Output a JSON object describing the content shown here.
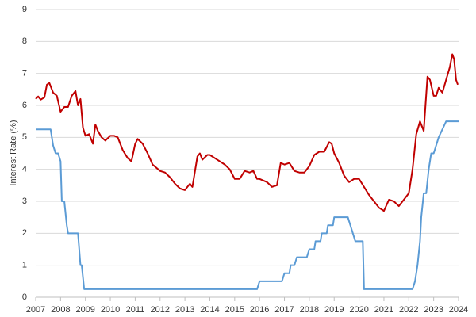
{
  "chart_data": {
    "type": "line",
    "y_label": "Interest Rate (%)",
    "xlim": [
      2007,
      2024
    ],
    "xticks": [
      2007,
      2008,
      2009,
      2010,
      2011,
      2012,
      2013,
      2014,
      2015,
      2016,
      2017,
      2018,
      2019,
      2020,
      2021,
      2022,
      2023,
      2024
    ],
    "ylim": [
      0,
      9
    ],
    "yticks": [
      0,
      1,
      2,
      3,
      4,
      5,
      6,
      7,
      8,
      9
    ],
    "grid": true,
    "series": [
      {
        "color": "#c00000",
        "x": [
          2007.0,
          2007.1,
          2007.2,
          2007.35,
          2007.45,
          2007.55,
          2007.7,
          2007.85,
          2008.0,
          2008.15,
          2008.3,
          2008.45,
          2008.6,
          2008.7,
          2008.8,
          2008.9,
          2009.0,
          2009.15,
          2009.3,
          2009.4,
          2009.5,
          2009.65,
          2009.8,
          2010.0,
          2010.15,
          2010.3,
          2010.5,
          2010.7,
          2010.85,
          2011.0,
          2011.1,
          2011.3,
          2011.5,
          2011.7,
          2012.0,
          2012.2,
          2012.4,
          2012.6,
          2012.8,
          2013.0,
          2013.2,
          2013.3,
          2013.5,
          2013.6,
          2013.7,
          2013.9,
          2014.0,
          2014.3,
          2014.6,
          2014.8,
          2015.0,
          2015.2,
          2015.4,
          2015.6,
          2015.75,
          2015.9,
          2016.0,
          2016.3,
          2016.5,
          2016.7,
          2016.85,
          2017.0,
          2017.2,
          2017.4,
          2017.6,
          2017.8,
          2018.0,
          2018.2,
          2018.4,
          2018.6,
          2018.8,
          2018.9,
          2019.0,
          2019.2,
          2019.4,
          2019.6,
          2019.8,
          2020.0,
          2020.2,
          2020.4,
          2020.6,
          2020.8,
          2021.0,
          2021.2,
          2021.4,
          2021.6,
          2021.8,
          2022.0,
          2022.15,
          2022.3,
          2022.45,
          2022.6,
          2022.75,
          2022.85,
          2023.0,
          2023.1,
          2023.2,
          2023.35,
          2023.5,
          2023.65,
          2023.75,
          2023.82,
          2023.9,
          2023.97
        ],
        "values": [
          6.2,
          6.28,
          6.18,
          6.25,
          6.65,
          6.7,
          6.4,
          6.3,
          5.8,
          5.95,
          5.95,
          6.3,
          6.45,
          6.0,
          6.2,
          5.3,
          5.05,
          5.1,
          4.8,
          5.4,
          5.2,
          5.0,
          4.9,
          5.05,
          5.05,
          5.0,
          4.6,
          4.35,
          4.25,
          4.8,
          4.95,
          4.8,
          4.5,
          4.15,
          3.95,
          3.9,
          3.75,
          3.55,
          3.4,
          3.35,
          3.55,
          3.45,
          4.4,
          4.5,
          4.3,
          4.45,
          4.45,
          4.3,
          4.15,
          4.0,
          3.7,
          3.7,
          3.95,
          3.9,
          3.95,
          3.7,
          3.7,
          3.6,
          3.45,
          3.5,
          4.2,
          4.15,
          4.2,
          3.95,
          3.9,
          3.9,
          4.1,
          4.45,
          4.55,
          4.55,
          4.85,
          4.8,
          4.5,
          4.2,
          3.8,
          3.6,
          3.7,
          3.7,
          3.45,
          3.2,
          3.0,
          2.8,
          2.7,
          3.05,
          3.0,
          2.85,
          3.05,
          3.25,
          4.0,
          5.1,
          5.5,
          5.2,
          6.9,
          6.8,
          6.3,
          6.3,
          6.55,
          6.4,
          6.8,
          7.2,
          7.6,
          7.45,
          6.8,
          6.65
        ]
      },
      {
        "color": "#5b9bd5",
        "x": [
          2007.0,
          2007.6,
          2007.7,
          2007.8,
          2007.9,
          2008.0,
          2008.05,
          2008.15,
          2008.25,
          2008.3,
          2008.7,
          2008.8,
          2008.85,
          2008.95,
          2015.9,
          2016.0,
          2016.9,
          2017.0,
          2017.2,
          2017.25,
          2017.4,
          2017.5,
          2017.9,
          2018.0,
          2018.2,
          2018.25,
          2018.45,
          2018.5,
          2018.7,
          2018.75,
          2018.95,
          2019.0,
          2019.55,
          2019.65,
          2019.75,
          2019.85,
          2020.15,
          2020.2,
          2022.15,
          2022.25,
          2022.35,
          2022.45,
          2022.5,
          2022.6,
          2022.7,
          2022.8,
          2022.9,
          2023.0,
          2023.1,
          2023.2,
          2023.35,
          2023.5,
          2024.0
        ],
        "values": [
          5.25,
          5.25,
          4.75,
          4.5,
          4.5,
          4.25,
          3.0,
          3.0,
          2.25,
          2.0,
          2.0,
          1.0,
          1.0,
          0.25,
          0.25,
          0.5,
          0.5,
          0.75,
          0.75,
          1.0,
          1.0,
          1.25,
          1.25,
          1.5,
          1.5,
          1.75,
          1.75,
          2.0,
          2.0,
          2.25,
          2.25,
          2.5,
          2.5,
          2.25,
          2.0,
          1.75,
          1.75,
          0.25,
          0.25,
          0.5,
          1.0,
          1.75,
          2.5,
          3.25,
          3.25,
          4.0,
          4.5,
          4.5,
          4.75,
          5.0,
          5.25,
          5.5,
          5.5
        ]
      }
    ]
  }
}
